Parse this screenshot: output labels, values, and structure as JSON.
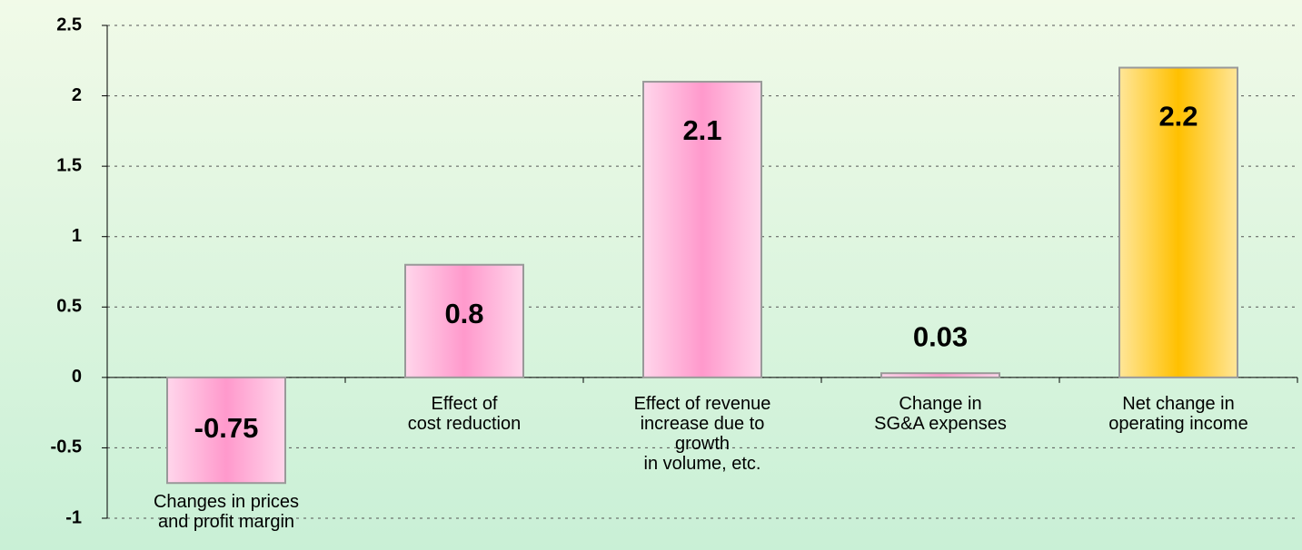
{
  "chart_data": {
    "type": "bar",
    "categories": [
      [
        "Changes in prices",
        "and profit margin"
      ],
      [
        "Effect of",
        "cost reduction"
      ],
      [
        "Effect of revenue",
        "increase due to",
        "growth",
        "in volume, etc."
      ],
      [
        "Change in",
        "SG&A expenses"
      ],
      [
        "Net change in",
        "operating income"
      ]
    ],
    "values": [
      -0.75,
      0.8,
      2.1,
      0.03,
      2.2
    ],
    "colors": [
      "#ff99cc",
      "#ff99cc",
      "#ff99cc",
      "#ff99cc",
      "#ffc000"
    ],
    "ylim": [
      -1,
      2.5
    ],
    "yticks": [
      -1,
      -0.5,
      0,
      0.5,
      1,
      1.5,
      2,
      2.5
    ],
    "grid": true
  }
}
